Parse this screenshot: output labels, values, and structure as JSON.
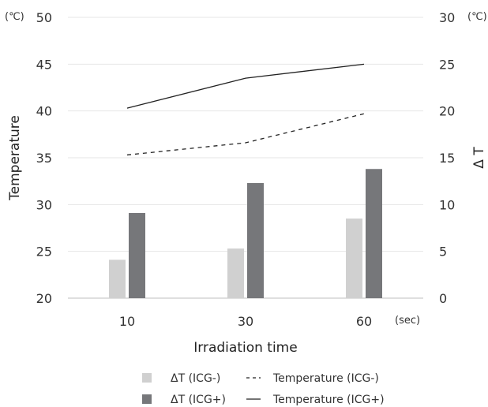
{
  "chart_data": {
    "type": "bar+line",
    "categories": [
      "10",
      "30",
      "60"
    ],
    "x_unit": "(sec)",
    "xlabel": "Irradiation time",
    "left_axis": {
      "label": "Temperature",
      "unit": "(℃)",
      "ylim": [
        20,
        50
      ],
      "ticks": [
        20,
        25,
        30,
        35,
        40,
        45,
        50
      ]
    },
    "right_axis": {
      "label": "Δ T",
      "unit": "(℃)",
      "ylim": [
        0,
        30
      ],
      "ticks": [
        0,
        5,
        10,
        15,
        20,
        25,
        30
      ]
    },
    "grid": true,
    "series": [
      {
        "name": "ΔT (ICG-)",
        "kind": "bar",
        "axis": "right",
        "color": "#d0d0d0",
        "values": [
          4.1,
          5.3,
          8.5
        ]
      },
      {
        "name": "ΔT (ICG+)",
        "kind": "bar",
        "axis": "right",
        "color": "#76777a",
        "values": [
          9.1,
          12.3,
          13.8
        ]
      },
      {
        "name": "Temperature (ICG-)",
        "kind": "line",
        "style": "dashed",
        "axis": "left",
        "color": "#222222",
        "values": [
          35.3,
          36.6,
          39.7
        ]
      },
      {
        "name": "Temperature (ICG+)",
        "kind": "line",
        "style": "solid",
        "axis": "left",
        "color": "#222222",
        "values": [
          40.3,
          43.5,
          45.0
        ]
      }
    ],
    "legend_position": "bottom"
  }
}
